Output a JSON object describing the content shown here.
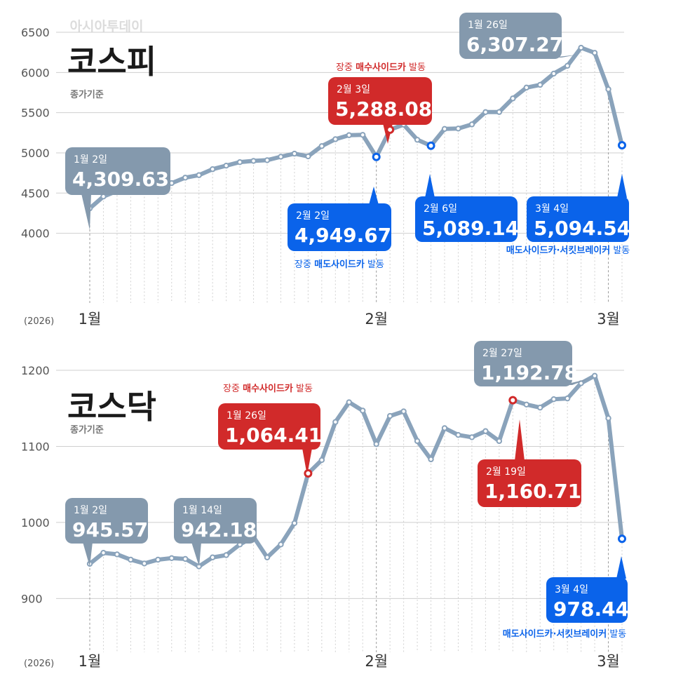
{
  "source": "아시아투데이",
  "colors": {
    "line": "#8aa3bb",
    "callout_gray": "#8499ad",
    "red": "#d12a2a",
    "blue": "#0a63ea",
    "grid": "#cfcfcf",
    "text": "#333333"
  },
  "chart_data": [
    {
      "type": "line",
      "title": "코스피",
      "subtitle": "종가기준",
      "year_label": "(2026)",
      "x_ticks": [
        "1월",
        "2월",
        "3월"
      ],
      "yticks": [
        4000,
        4500,
        5000,
        5500,
        6000,
        6500
      ],
      "ylim": [
        3700,
        6500
      ],
      "grid": true,
      "series": [
        {
          "values": [
            4309.63,
            4457,
            4525,
            4552,
            4551,
            4587,
            4624,
            4692,
            4723,
            4797,
            4841,
            4885,
            4900,
            4909,
            4952,
            4990,
            4957,
            5084,
            5170,
            5220,
            5224,
            4949.67,
            5288.08,
            5351,
            5163,
            5089.14,
            5298,
            5302,
            5354,
            5507,
            5508,
            5677,
            5812,
            5846,
            5986,
            6083,
            6307.27,
            6244,
            5791,
            5094.54
          ]
        }
      ],
      "callouts": [
        {
          "date": "1월 2일",
          "value": "4,309.63",
          "style": "gray"
        },
        {
          "date": "2월 2일",
          "value": "4,949.67",
          "style": "blue",
          "note_prefix": "장중 ",
          "note_bold": "매도사이드카",
          "note_suffix": " 발동"
        },
        {
          "date": "2월 3일",
          "value": "5,288.08",
          "style": "red",
          "note_prefix": "장중 ",
          "note_bold": "매수사이드카",
          "note_suffix": " 발동"
        },
        {
          "date": "2월 6일",
          "value": "5,089.14",
          "style": "blue"
        },
        {
          "date": "1월 26일",
          "value": "6,307.27",
          "style": "gray"
        },
        {
          "date": "3월 4일",
          "value": "5,094.54",
          "style": "blue",
          "note_prefix": "",
          "note_bold": "매도사이드카·서킷브레이커",
          "note_suffix": " 발동"
        }
      ]
    },
    {
      "type": "line",
      "title": "코스닥",
      "subtitle": "종가기준",
      "year_label": "(2026)",
      "x_ticks": [
        "1월",
        "2월",
        "3월"
      ],
      "yticks": [
        900,
        1000,
        1100,
        1200
      ],
      "ylim": [
        880,
        1200
      ],
      "grid": true,
      "series": [
        {
          "values": [
            945.57,
            960,
            958,
            951,
            946,
            951,
            953,
            952,
            942.18,
            954,
            957,
            971,
            981,
            954,
            971,
            999,
            1064.41,
            1082,
            1132,
            1158,
            1147,
            1103,
            1140,
            1146,
            1107,
            1083,
            1124,
            1115,
            1112,
            1120,
            1107,
            1160.71,
            1155,
            1151,
            1162,
            1163,
            1183,
            1192.78,
            1137,
            978.44
          ]
        }
      ],
      "callouts": [
        {
          "date": "1월 2일",
          "value": "945.57",
          "style": "gray"
        },
        {
          "date": "1월 14일",
          "value": "942.18",
          "style": "gray"
        },
        {
          "date": "1월 26일",
          "value": "1,064.41",
          "style": "red",
          "note_prefix": "장중 ",
          "note_bold": "매수사이드카",
          "note_suffix": " 발동"
        },
        {
          "date": "2월 19일",
          "value": "1,160.71",
          "style": "red"
        },
        {
          "date": "2월 27일",
          "value": "1,192.78",
          "style": "gray"
        },
        {
          "date": "3월 4일",
          "value": "978.44",
          "style": "blue",
          "note_prefix": "",
          "note_bold": "매도사이드카·서킷브레이커",
          "note_suffix": " 발동"
        }
      ]
    }
  ]
}
